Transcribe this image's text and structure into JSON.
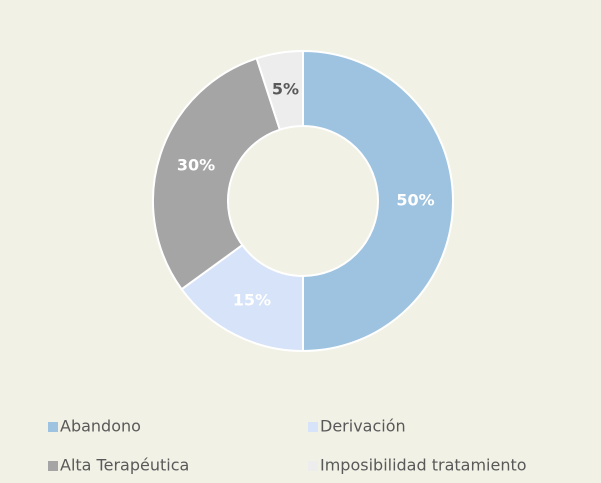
{
  "chart_data": {
    "type": "pie",
    "categories": [
      "Abandono",
      "Derivación",
      "Alta Terapéutica",
      "Imposibilidad tratamiento"
    ],
    "values": [
      50,
      15,
      30,
      5
    ],
    "value_labels": [
      "50%",
      "15%",
      "30%",
      "5%"
    ],
    "colors": [
      "#9dc3e0",
      "#d6e3f8",
      "#a5a5a5",
      "#ededed"
    ],
    "label_colors": [
      "#ffffff",
      "#ffffff",
      "#ffffff",
      "#595959"
    ],
    "donut": true,
    "legend": "bottom"
  }
}
